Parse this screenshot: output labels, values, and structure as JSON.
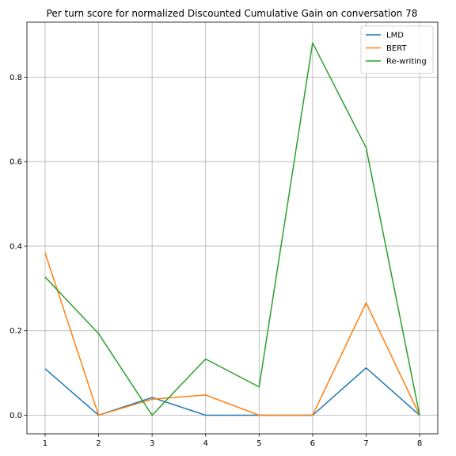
{
  "chart_data": {
    "type": "line",
    "title": "Per turn score for normalized Discounted Cumulative Gain on conversation 78",
    "xlabel": "",
    "ylabel": "",
    "x": [
      1,
      2,
      3,
      4,
      5,
      6,
      7,
      8
    ],
    "x_ticks": [
      "1",
      "2",
      "3",
      "4",
      "5",
      "6",
      "7",
      "8"
    ],
    "y_ticks": [
      "0.0",
      "0.2",
      "0.4",
      "0.6",
      "0.8"
    ],
    "xlim": [
      0.66,
      8.34
    ],
    "ylim": [
      -0.044,
      0.93
    ],
    "grid": true,
    "legend_position": "top-right",
    "series": [
      {
        "name": "LMD",
        "color": "#1f77b4",
        "values": [
          0.11,
          0.0,
          0.042,
          0.0,
          0.0,
          0.0,
          0.112,
          0.0
        ]
      },
      {
        "name": "BERT",
        "color": "#ff7f0e",
        "values": [
          0.384,
          0.0,
          0.038,
          0.048,
          0.0,
          0.0,
          0.266,
          0.0
        ]
      },
      {
        "name": "Re-writing",
        "color": "#2ca02c",
        "values": [
          0.327,
          0.193,
          0.0,
          0.133,
          0.067,
          0.881,
          0.633,
          0.0
        ]
      }
    ]
  }
}
